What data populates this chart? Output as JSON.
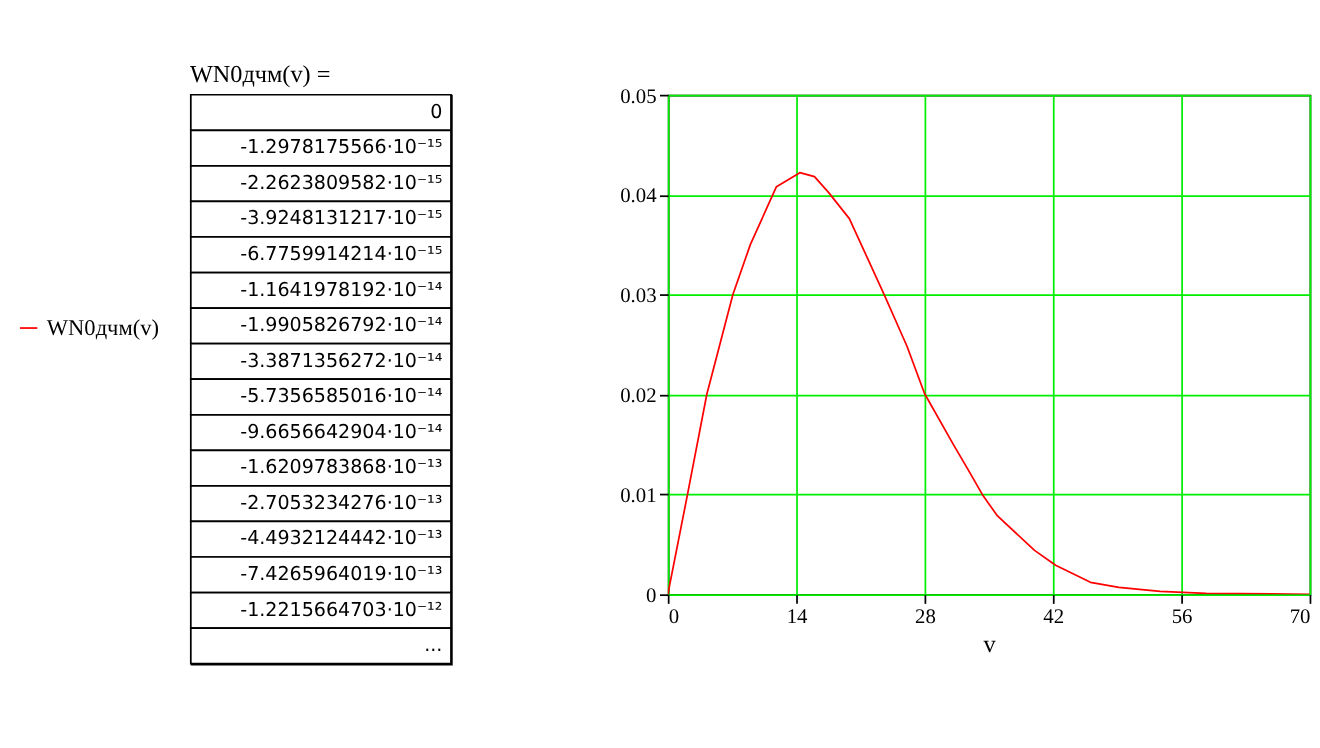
{
  "chart_data": [
    {
      "type": "other",
      "title": "WN0дчм(v) =",
      "annotations": [
        "0",
        "-1.2978175566·10⁻¹⁵",
        "-2.2623809582·10⁻¹⁵",
        "-3.9248131217·10⁻¹⁵",
        "-6.7759914214·10⁻¹⁵",
        "-1.1641978192·10⁻¹⁴",
        "-1.9905826792·10⁻¹⁴",
        "-3.3871356272·10⁻¹⁴",
        "-5.7356585016·10⁻¹⁴",
        "-9.6656642904·10⁻¹⁴",
        "-1.6209783868·10⁻¹³",
        "-2.7053234276·10⁻¹³",
        "-4.4932124442·10⁻¹³",
        "-7.4265964019·10⁻¹³",
        "-1.2215664703·10⁻¹²",
        "..."
      ]
    },
    {
      "type": "line",
      "xlabel": "v",
      "x": [
        0,
        2.15,
        4.25,
        7.1,
        9.0,
        11.85,
        14.4,
        16.0,
        17.55,
        19.8,
        23.6,
        26.1,
        28.0,
        31.2,
        32.8,
        34.3,
        35.9,
        40.0,
        42.3,
        46.1,
        49.2,
        53.7,
        58.7,
        70
      ],
      "series": [
        {
          "name": "WN0дчм(v)",
          "color": "#ff0000",
          "values": [
            0,
            0.01,
            0.02,
            0.03,
            0.035,
            0.0408,
            0.0422,
            0.0418,
            0.0402,
            0.0376,
            0.03,
            0.0248,
            0.0201,
            0.0149,
            0.0124,
            0.01,
            0.0079,
            0.0044,
            0.0029,
            0.0012,
            0.0007,
            0.0003,
            0.0001,
            0
          ]
        }
      ],
      "xlim": [
        0,
        70
      ],
      "ylim": [
        0,
        0.05
      ],
      "xticks": [
        0,
        14,
        28,
        42,
        56,
        70
      ],
      "yticks": [
        0,
        0.01,
        0.02,
        0.03,
        0.04,
        0.05
      ],
      "grid": true,
      "legend": "left"
    }
  ]
}
